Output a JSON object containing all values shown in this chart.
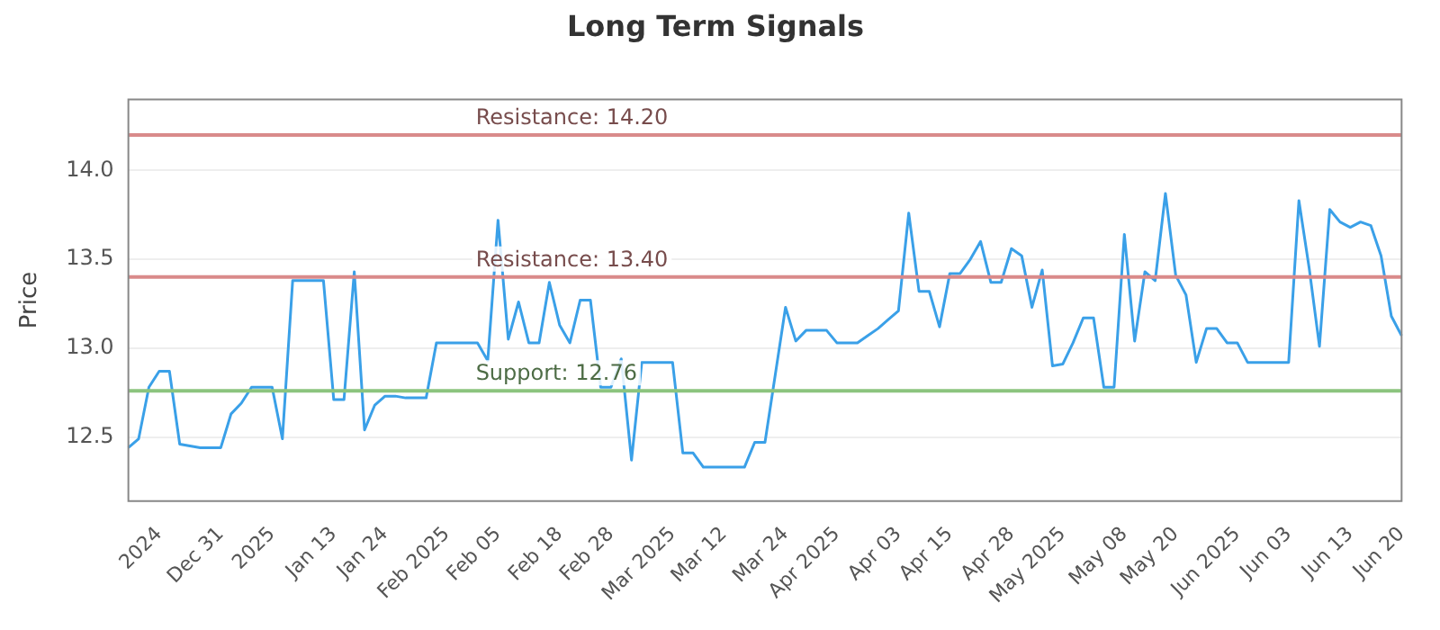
{
  "chart_data": {
    "type": "line",
    "title": "Long Term Signals",
    "ylabel": "Price",
    "categories": [
      null,
      null,
      null,
      "2024",
      null,
      null,
      null,
      null,
      null,
      "Dec 31",
      null,
      null,
      null,
      null,
      "2025",
      null,
      null,
      null,
      null,
      null,
      "Jan 13",
      null,
      null,
      null,
      null,
      "Jan 24",
      null,
      null,
      null,
      null,
      null,
      "Feb 2025",
      null,
      null,
      null,
      null,
      "Feb 05",
      null,
      null,
      null,
      null,
      null,
      "Feb 18",
      null,
      null,
      null,
      null,
      "Feb 28",
      null,
      null,
      null,
      null,
      null,
      "Mar 2025",
      null,
      null,
      null,
      null,
      "Mar 12",
      null,
      null,
      null,
      null,
      null,
      "Mar 24",
      null,
      null,
      null,
      null,
      "Apr 2025",
      null,
      null,
      null,
      null,
      null,
      "Apr 03",
      null,
      null,
      null,
      null,
      "Apr 15",
      null,
      null,
      null,
      null,
      null,
      "Apr 28",
      null,
      null,
      null,
      null,
      "May 2025",
      null,
      null,
      null,
      null,
      null,
      "May 08",
      null,
      null,
      null,
      null,
      "May 20",
      null,
      null,
      null,
      null,
      null,
      "Jun 2025",
      null,
      null,
      null,
      null,
      "Jun 03",
      null,
      null,
      null,
      null,
      null,
      "Jun 13",
      null,
      null,
      null,
      null,
      "Jun 20"
    ],
    "series": [
      {
        "color": "#3aa0e8",
        "values": [
          12.44,
          12.49,
          12.78,
          12.87,
          12.87,
          12.46,
          12.45,
          12.44,
          12.44,
          12.44,
          12.63,
          12.69,
          12.78,
          12.78,
          12.78,
          12.49,
          13.38,
          13.38,
          13.38,
          13.38,
          12.71,
          12.71,
          13.43,
          12.54,
          12.68,
          12.73,
          12.73,
          12.72,
          12.72,
          12.72,
          13.03,
          13.03,
          13.03,
          13.03,
          13.03,
          12.93,
          13.72,
          13.05,
          13.26,
          13.03,
          13.03,
          13.37,
          13.13,
          13.03,
          13.27,
          13.27,
          12.78,
          12.78,
          12.94,
          12.37,
          12.92,
          12.92,
          12.92,
          12.92,
          12.41,
          12.41,
          12.33,
          12.33,
          12.33,
          12.33,
          12.33,
          12.47,
          12.47,
          12.85,
          13.23,
          13.04,
          13.1,
          13.1,
          13.1,
          13.03,
          13.03,
          13.03,
          13.07,
          13.11,
          13.16,
          13.21,
          13.76,
          13.32,
          13.32,
          13.12,
          13.42,
          13.42,
          13.5,
          13.6,
          13.37,
          13.37,
          13.56,
          13.52,
          13.23,
          13.44,
          12.9,
          12.91,
          13.03,
          13.17,
          13.17,
          12.78,
          12.78,
          13.64,
          13.04,
          13.43,
          13.38,
          13.87,
          13.41,
          13.3,
          12.92,
          13.11,
          13.11,
          13.03,
          13.03,
          12.92,
          12.92,
          12.92,
          12.92,
          12.92,
          13.83,
          13.45,
          13.01,
          13.78,
          13.71,
          13.68,
          13.71,
          13.69,
          13.52,
          13.18,
          13.07
        ]
      }
    ],
    "ylim": [
      12.14,
      14.4
    ],
    "yticks": [
      {
        "value": 12.5,
        "label": "12.5"
      },
      {
        "value": 13,
        "label": "13.0"
      },
      {
        "value": 13.5,
        "label": "13.5"
      },
      {
        "value": 14,
        "label": "14.0"
      }
    ],
    "grid": "y",
    "marker": "none",
    "line_style": "solid",
    "ref_lines": [
      {
        "axis": "y",
        "value": 14.2,
        "label": "Resistance: 14.20",
        "color": "#d98a8a"
      },
      {
        "axis": "y",
        "value": 13.4,
        "label": "Resistance: 13.40",
        "color": "#d98a8a"
      },
      {
        "axis": "y",
        "value": 12.76,
        "label": "Support: 12.76",
        "color": "#8cc47e"
      }
    ]
  }
}
